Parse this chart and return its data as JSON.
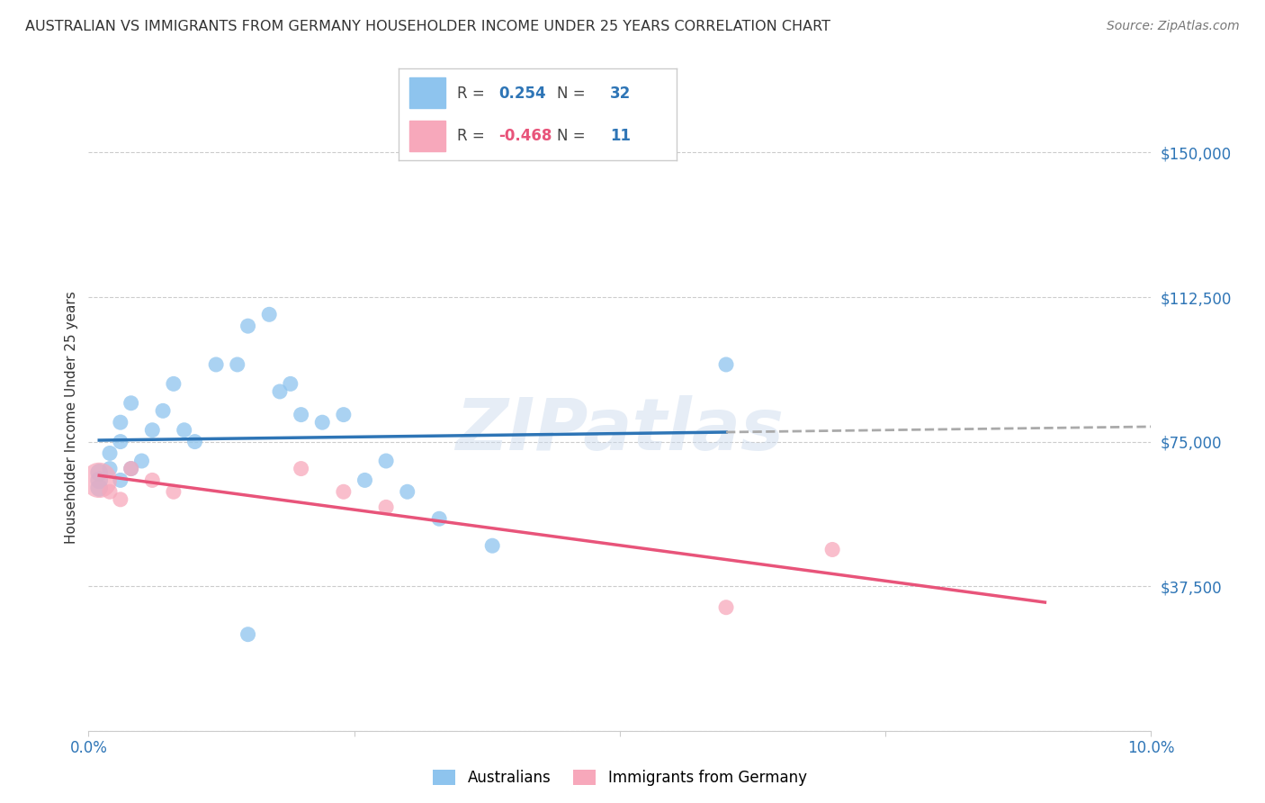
{
  "title": "AUSTRALIAN VS IMMIGRANTS FROM GERMANY HOUSEHOLDER INCOME UNDER 25 YEARS CORRELATION CHART",
  "source": "Source: ZipAtlas.com",
  "ylabel": "Householder Income Under 25 years",
  "xlim": [
    0.0,
    0.1
  ],
  "ylim": [
    0,
    162500
  ],
  "yticks": [
    0,
    37500,
    75000,
    112500,
    150000
  ],
  "ytick_labels": [
    "",
    "$37,500",
    "$75,000",
    "$112,500",
    "$150,000"
  ],
  "grid_color": "#cccccc",
  "background_color": "#ffffff",
  "watermark": "ZIPatlas",
  "legend_R_blue": "0.254",
  "legend_N_blue": "32",
  "legend_R_pink": "-0.468",
  "legend_N_pink": "11",
  "aus_color": "#8ec4ee",
  "ger_color": "#f7a8bb",
  "aus_line_color": "#2e75b6",
  "ger_line_color": "#e8547a",
  "extrapolate_color": "#aaaaaa",
  "aus_x": [
    0.001,
    0.001,
    0.001,
    0.002,
    0.002,
    0.003,
    0.003,
    0.003,
    0.004,
    0.004,
    0.005,
    0.006,
    0.007,
    0.008,
    0.009,
    0.01,
    0.012,
    0.014,
    0.015,
    0.017,
    0.018,
    0.019,
    0.02,
    0.022,
    0.024,
    0.026,
    0.028,
    0.03,
    0.033,
    0.038,
    0.06,
    0.015
  ],
  "aus_y": [
    65000,
    67000,
    63000,
    68000,
    72000,
    80000,
    75000,
    65000,
    85000,
    68000,
    70000,
    78000,
    83000,
    90000,
    78000,
    75000,
    95000,
    95000,
    105000,
    108000,
    88000,
    90000,
    82000,
    80000,
    82000,
    65000,
    70000,
    62000,
    55000,
    48000,
    95000,
    25000
  ],
  "ger_x": [
    0.001,
    0.002,
    0.003,
    0.004,
    0.006,
    0.008,
    0.02,
    0.024,
    0.028,
    0.06,
    0.07
  ],
  "ger_y": [
    65000,
    62000,
    60000,
    68000,
    65000,
    62000,
    68000,
    62000,
    58000,
    32000,
    47000
  ],
  "aus_sizes": [
    200,
    200,
    200,
    150,
    150,
    150,
    150,
    150,
    150,
    150,
    150,
    150,
    150,
    150,
    150,
    150,
    150,
    150,
    150,
    150,
    150,
    150,
    150,
    150,
    150,
    150,
    150,
    150,
    150,
    150,
    150,
    150
  ],
  "ger_sizes": [
    800,
    150,
    150,
    150,
    150,
    150,
    150,
    150,
    150,
    150,
    150
  ],
  "aus_line_x_start": 0.001,
  "aus_line_x_solid_end": 0.06,
  "aus_line_x_dash_end": 0.1,
  "ger_line_x_start": 0.001,
  "ger_line_x_end": 0.09
}
